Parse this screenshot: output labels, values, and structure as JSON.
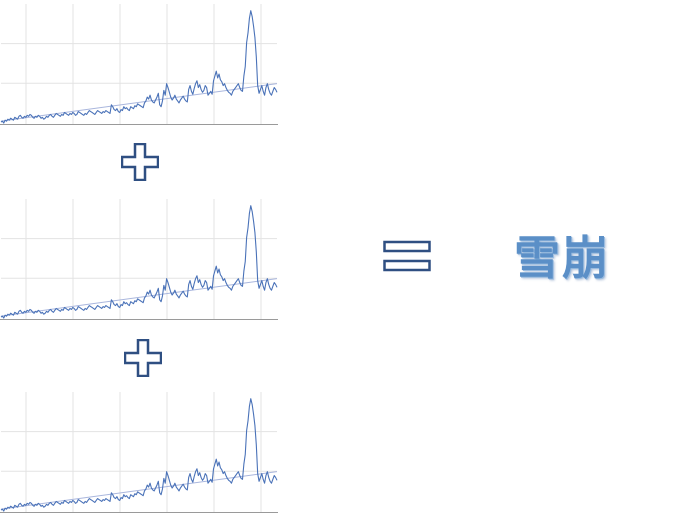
{
  "colors": {
    "series_line": "#4a72b8",
    "trend_line": "#a9b6dd",
    "grid": "#e3e3e3",
    "axis": "#9a9a9a",
    "operator_stroke": "#2f4f82",
    "result_text": "#5b8fc7"
  },
  "operators": {
    "plus_1": "plus-icon",
    "plus_2": "plus-icon",
    "equals": "equals-icon"
  },
  "result": {
    "text": "雪崩"
  },
  "chart_data": [
    {
      "type": "line",
      "series_values": [
        2,
        3,
        1,
        4,
        3,
        5,
        4,
        6,
        5,
        4,
        7,
        6,
        5,
        8,
        9,
        7,
        6,
        8,
        7,
        9,
        8,
        10,
        9,
        7,
        6,
        8,
        7,
        9,
        8,
        6,
        7,
        5,
        6,
        8,
        7,
        9,
        10,
        8,
        7,
        9,
        11,
        10,
        9,
        8,
        10,
        9,
        12,
        11,
        10,
        9,
        11,
        10,
        12,
        11,
        9,
        10,
        13,
        12,
        11,
        10,
        9,
        11,
        10,
        12,
        14,
        13,
        12,
        11,
        10,
        12,
        14,
        13,
        12,
        11,
        13,
        12,
        14,
        13,
        12,
        11,
        20,
        18,
        15,
        14,
        16,
        13,
        12,
        15,
        14,
        18,
        16,
        17,
        15,
        14,
        18,
        17,
        16,
        19,
        18,
        21,
        20,
        19,
        18,
        17,
        22,
        24,
        28,
        26,
        30,
        25,
        23,
        22,
        25,
        28,
        32,
        20,
        18,
        24,
        35,
        30,
        42,
        38,
        33,
        28,
        25,
        27,
        30,
        26,
        24,
        22,
        25,
        27,
        29,
        26,
        24,
        23,
        36,
        40,
        34,
        31,
        37,
        42,
        45,
        38,
        41,
        36,
        33,
        35,
        40,
        38,
        30,
        32,
        34,
        31,
        45,
        50,
        55,
        48,
        52,
        46,
        44,
        40,
        42,
        38,
        35,
        33,
        32,
        30,
        34,
        36,
        38,
        40,
        42,
        38,
        35,
        34,
        50,
        60,
        85,
        95,
        110,
        118,
        112,
        102,
        90,
        70,
        40,
        32,
        36,
        40,
        34,
        30,
        38,
        42,
        36,
        32,
        30,
        34,
        38,
        36,
        33
      ],
      "trend": [
        3,
        42
      ],
      "grid": true,
      "ylim": [
        0,
        125
      ]
    },
    {
      "type": "line",
      "series_values": [
        2,
        3,
        1,
        4,
        3,
        5,
        4,
        6,
        5,
        4,
        7,
        6,
        5,
        8,
        9,
        7,
        6,
        8,
        7,
        9,
        8,
        10,
        9,
        7,
        6,
        8,
        7,
        9,
        8,
        6,
        7,
        5,
        6,
        8,
        7,
        9,
        10,
        8,
        7,
        9,
        11,
        10,
        9,
        8,
        10,
        9,
        12,
        11,
        10,
        9,
        11,
        10,
        12,
        11,
        9,
        10,
        13,
        12,
        11,
        10,
        9,
        11,
        10,
        12,
        14,
        13,
        12,
        11,
        10,
        12,
        14,
        13,
        12,
        11,
        13,
        12,
        14,
        13,
        12,
        11,
        20,
        18,
        15,
        14,
        16,
        13,
        12,
        15,
        14,
        18,
        16,
        17,
        15,
        14,
        18,
        17,
        16,
        19,
        18,
        21,
        20,
        19,
        18,
        17,
        22,
        24,
        28,
        26,
        30,
        25,
        23,
        22,
        25,
        28,
        32,
        20,
        18,
        24,
        35,
        30,
        42,
        38,
        33,
        28,
        25,
        27,
        30,
        26,
        24,
        22,
        25,
        27,
        29,
        26,
        24,
        23,
        36,
        40,
        34,
        31,
        37,
        42,
        45,
        38,
        41,
        36,
        33,
        35,
        40,
        38,
        30,
        32,
        34,
        31,
        45,
        50,
        55,
        48,
        52,
        46,
        44,
        40,
        42,
        38,
        35,
        33,
        32,
        30,
        34,
        36,
        38,
        40,
        42,
        38,
        35,
        34,
        50,
        60,
        85,
        95,
        110,
        118,
        112,
        102,
        90,
        70,
        40,
        32,
        36,
        40,
        34,
        30,
        38,
        42,
        36,
        32,
        30,
        34,
        38,
        36,
        33
      ],
      "trend": [
        3,
        42
      ],
      "grid": true,
      "ylim": [
        0,
        125
      ]
    },
    {
      "type": "line",
      "series_values": [
        2,
        3,
        1,
        4,
        3,
        5,
        4,
        6,
        5,
        4,
        7,
        6,
        5,
        8,
        9,
        7,
        6,
        8,
        7,
        9,
        8,
        10,
        9,
        7,
        6,
        8,
        7,
        9,
        8,
        6,
        7,
        5,
        6,
        8,
        7,
        9,
        10,
        8,
        7,
        9,
        11,
        10,
        9,
        8,
        10,
        9,
        12,
        11,
        10,
        9,
        11,
        10,
        12,
        11,
        9,
        10,
        13,
        12,
        11,
        10,
        9,
        11,
        10,
        12,
        14,
        13,
        12,
        11,
        10,
        12,
        14,
        13,
        12,
        11,
        13,
        12,
        14,
        13,
        12,
        11,
        20,
        18,
        15,
        14,
        16,
        13,
        12,
        15,
        14,
        18,
        16,
        17,
        15,
        14,
        18,
        17,
        16,
        19,
        18,
        21,
        20,
        19,
        18,
        17,
        22,
        24,
        28,
        26,
        30,
        25,
        23,
        22,
        25,
        28,
        32,
        20,
        18,
        24,
        35,
        30,
        42,
        38,
        33,
        28,
        25,
        27,
        30,
        26,
        24,
        22,
        25,
        27,
        29,
        26,
        24,
        23,
        36,
        40,
        34,
        31,
        37,
        42,
        45,
        38,
        41,
        36,
        33,
        35,
        40,
        38,
        30,
        32,
        34,
        31,
        45,
        50,
        55,
        48,
        52,
        46,
        44,
        40,
        42,
        38,
        35,
        33,
        32,
        30,
        34,
        36,
        38,
        40,
        42,
        38,
        35,
        34,
        50,
        60,
        85,
        95,
        110,
        118,
        112,
        102,
        90,
        70,
        40,
        32,
        36,
        40,
        34,
        30,
        38,
        42,
        36,
        32,
        30,
        34,
        38,
        36,
        33
      ],
      "trend": [
        3,
        42
      ],
      "grid": true,
      "ylim": [
        0,
        125
      ]
    }
  ]
}
